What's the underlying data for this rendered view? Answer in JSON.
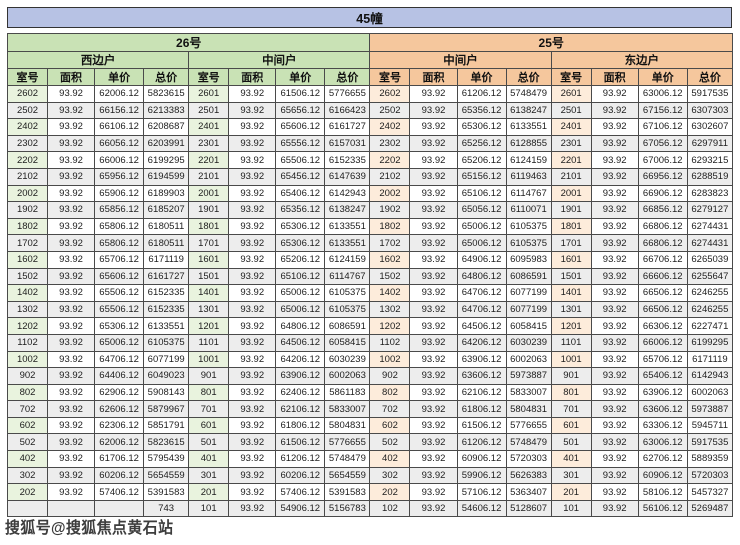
{
  "chart_data": {
    "type": "table",
    "title": "45幢",
    "column_headers": [
      "室号",
      "面积",
      "单价",
      "总价"
    ],
    "buildings": [
      {
        "name": "26号",
        "header_color": "#c9e2b5",
        "households": [
          {
            "name": "西边户",
            "rows": [
              [
                "2602",
                "93.92",
                "62006.12",
                "5823615"
              ],
              [
                "2502",
                "93.92",
                "66156.12",
                "6213383"
              ],
              [
                "2402",
                "93.92",
                "66106.12",
                "6208687"
              ],
              [
                "2302",
                "93.92",
                "66056.12",
                "6203991"
              ],
              [
                "2202",
                "93.92",
                "66006.12",
                "6199295"
              ],
              [
                "2102",
                "93.92",
                "65956.12",
                "6194599"
              ],
              [
                "2002",
                "93.92",
                "65906.12",
                "6189903"
              ],
              [
                "1902",
                "93.92",
                "65856.12",
                "6185207"
              ],
              [
                "1802",
                "93.92",
                "65806.12",
                "6180511"
              ],
              [
                "1702",
                "93.92",
                "65806.12",
                "6180511"
              ],
              [
                "1602",
                "93.92",
                "65706.12",
                "6171119"
              ],
              [
                "1502",
                "93.92",
                "65606.12",
                "6161727"
              ],
              [
                "1402",
                "93.92",
                "65506.12",
                "6152335"
              ],
              [
                "1302",
                "93.92",
                "65506.12",
                "6152335"
              ],
              [
                "1202",
                "93.92",
                "65306.12",
                "6133551"
              ],
              [
                "1102",
                "93.92",
                "65006.12",
                "6105375"
              ],
              [
                "1002",
                "93.92",
                "64706.12",
                "6077199"
              ],
              [
                "902",
                "93.92",
                "64406.12",
                "6049023"
              ],
              [
                "802",
                "93.92",
                "62906.12",
                "5908143"
              ],
              [
                "702",
                "93.92",
                "62606.12",
                "5879967"
              ],
              [
                "602",
                "93.92",
                "62306.12",
                "5851791"
              ],
              [
                "502",
                "93.92",
                "62006.12",
                "5823615"
              ],
              [
                "402",
                "93.92",
                "61706.12",
                "5795439"
              ],
              [
                "302",
                "93.92",
                "60206.12",
                "5654559"
              ],
              [
                "202",
                "93.92",
                "57406.12",
                "5391583"
              ],
              [
                "",
                "",
                "",
                "743"
              ]
            ]
          },
          {
            "name": "中间户",
            "rows": [
              [
                "2601",
                "93.92",
                "61506.12",
                "5776655"
              ],
              [
                "2501",
                "93.92",
                "65656.12",
                "6166423"
              ],
              [
                "2401",
                "93.92",
                "65606.12",
                "6161727"
              ],
              [
                "2301",
                "93.92",
                "65556.12",
                "6157031"
              ],
              [
                "2201",
                "93.92",
                "65506.12",
                "6152335"
              ],
              [
                "2101",
                "93.92",
                "65456.12",
                "6147639"
              ],
              [
                "2001",
                "93.92",
                "65406.12",
                "6142943"
              ],
              [
                "1901",
                "93.92",
                "65356.12",
                "6138247"
              ],
              [
                "1801",
                "93.92",
                "65306.12",
                "6133551"
              ],
              [
                "1701",
                "93.92",
                "65306.12",
                "6133551"
              ],
              [
                "1601",
                "93.92",
                "65206.12",
                "6124159"
              ],
              [
                "1501",
                "93.92",
                "65106.12",
                "6114767"
              ],
              [
                "1401",
                "93.92",
                "65006.12",
                "6105375"
              ],
              [
                "1301",
                "93.92",
                "65006.12",
                "6105375"
              ],
              [
                "1201",
                "93.92",
                "64806.12",
                "6086591"
              ],
              [
                "1101",
                "93.92",
                "64506.12",
                "6058415"
              ],
              [
                "1001",
                "93.92",
                "64206.12",
                "6030239"
              ],
              [
                "901",
                "93.92",
                "63906.12",
                "6002063"
              ],
              [
                "801",
                "93.92",
                "62406.12",
                "5861183"
              ],
              [
                "701",
                "93.92",
                "62106.12",
                "5833007"
              ],
              [
                "601",
                "93.92",
                "61806.12",
                "5804831"
              ],
              [
                "501",
                "93.92",
                "61506.12",
                "5776655"
              ],
              [
                "401",
                "93.92",
                "61206.12",
                "5748479"
              ],
              [
                "301",
                "93.92",
                "60206.12",
                "5654559"
              ],
              [
                "201",
                "93.92",
                "57406.12",
                "5391583"
              ],
              [
                "101",
                "93.92",
                "54906.12",
                "5156783"
              ]
            ]
          }
        ]
      },
      {
        "name": "25号",
        "header_color": "#f5c79d",
        "households": [
          {
            "name": "中间户",
            "rows": [
              [
                "2602",
                "93.92",
                "61206.12",
                "5748479"
              ],
              [
                "2502",
                "93.92",
                "65356.12",
                "6138247"
              ],
              [
                "2402",
                "93.92",
                "65306.12",
                "6133551"
              ],
              [
                "2302",
                "93.92",
                "65256.12",
                "6128855"
              ],
              [
                "2202",
                "93.92",
                "65206.12",
                "6124159"
              ],
              [
                "2102",
                "93.92",
                "65156.12",
                "6119463"
              ],
              [
                "2002",
                "93.92",
                "65106.12",
                "6114767"
              ],
              [
                "1902",
                "93.92",
                "65056.12",
                "6110071"
              ],
              [
                "1802",
                "93.92",
                "65006.12",
                "6105375"
              ],
              [
                "1702",
                "93.92",
                "65006.12",
                "6105375"
              ],
              [
                "1602",
                "93.92",
                "64906.12",
                "6095983"
              ],
              [
                "1502",
                "93.92",
                "64806.12",
                "6086591"
              ],
              [
                "1402",
                "93.92",
                "64706.12",
                "6077199"
              ],
              [
                "1302",
                "93.92",
                "64706.12",
                "6077199"
              ],
              [
                "1202",
                "93.92",
                "64506.12",
                "6058415"
              ],
              [
                "1102",
                "93.92",
                "64206.12",
                "6030239"
              ],
              [
                "1002",
                "93.92",
                "63906.12",
                "6002063"
              ],
              [
                "902",
                "93.92",
                "63606.12",
                "5973887"
              ],
              [
                "802",
                "93.92",
                "62106.12",
                "5833007"
              ],
              [
                "702",
                "93.92",
                "61806.12",
                "5804831"
              ],
              [
                "602",
                "93.92",
                "61506.12",
                "5776655"
              ],
              [
                "502",
                "93.92",
                "61206.12",
                "5748479"
              ],
              [
                "402",
                "93.92",
                "60906.12",
                "5720303"
              ],
              [
                "302",
                "93.92",
                "59906.12",
                "5626383"
              ],
              [
                "202",
                "93.92",
                "57106.12",
                "5363407"
              ],
              [
                "102",
                "93.92",
                "54606.12",
                "5128607"
              ]
            ]
          },
          {
            "name": "东边户",
            "rows": [
              [
                "2601",
                "93.92",
                "63006.12",
                "5917535"
              ],
              [
                "2501",
                "93.92",
                "67156.12",
                "6307303"
              ],
              [
                "2401",
                "93.92",
                "67106.12",
                "6302607"
              ],
              [
                "2301",
                "93.92",
                "67056.12",
                "6297911"
              ],
              [
                "2201",
                "93.92",
                "67006.12",
                "6293215"
              ],
              [
                "2101",
                "93.92",
                "66956.12",
                "6288519"
              ],
              [
                "2001",
                "93.92",
                "66906.12",
                "6283823"
              ],
              [
                "1901",
                "93.92",
                "66856.12",
                "6279127"
              ],
              [
                "1801",
                "93.92",
                "66806.12",
                "6274431"
              ],
              [
                "1701",
                "93.92",
                "66806.12",
                "6274431"
              ],
              [
                "1601",
                "93.92",
                "66706.12",
                "6265039"
              ],
              [
                "1501",
                "93.92",
                "66606.12",
                "6255647"
              ],
              [
                "1401",
                "93.92",
                "66506.12",
                "6246255"
              ],
              [
                "1301",
                "93.92",
                "66506.12",
                "6246255"
              ],
              [
                "1201",
                "93.92",
                "66306.12",
                "6227471"
              ],
              [
                "1101",
                "93.92",
                "66006.12",
                "6199295"
              ],
              [
                "1001",
                "93.92",
                "65706.12",
                "6171119"
              ],
              [
                "901",
                "93.92",
                "65406.12",
                "6142943"
              ],
              [
                "801",
                "93.92",
                "63906.12",
                "6002063"
              ],
              [
                "701",
                "93.92",
                "63606.12",
                "5973887"
              ],
              [
                "601",
                "93.92",
                "63306.12",
                "5945711"
              ],
              [
                "501",
                "93.92",
                "63006.12",
                "5917535"
              ],
              [
                "401",
                "93.92",
                "62706.12",
                "5889359"
              ],
              [
                "301",
                "93.92",
                "60906.12",
                "5720303"
              ],
              [
                "201",
                "93.92",
                "58106.12",
                "5457327"
              ],
              [
                "101",
                "93.92",
                "56106.12",
                "5269487"
              ]
            ]
          }
        ]
      }
    ]
  },
  "watermark": "搜狐号@搜狐焦点黄石站",
  "colors": {
    "title_bar": "#b7c2e4",
    "green": "#c9e2b5",
    "green_light": "#e9f3de",
    "orange": "#f5c79d",
    "orange_light": "#fdecdb",
    "stripe": "#ededed",
    "border": "#4a4a4a"
  }
}
